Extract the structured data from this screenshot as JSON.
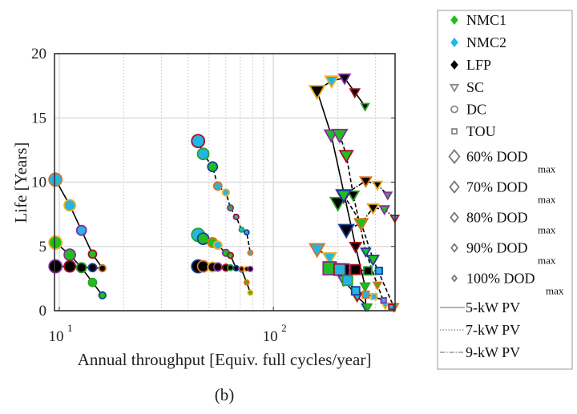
{
  "chart_data": {
    "type": "scatter",
    "panel_label": "(b)",
    "xlabel": "Annual throughput [Equiv. full cycles/year]",
    "ylabel": "Life [Years]",
    "x_scale": "log",
    "xlim": [
      9.5,
      370
    ],
    "ylim": [
      0,
      20
    ],
    "x_ticks": [
      {
        "value": 10,
        "base": "10",
        "exp": "1"
      },
      {
        "value": 100,
        "base": "10",
        "exp": "2"
      }
    ],
    "y_ticks": [
      "0",
      "5",
      "10",
      "15",
      "20"
    ],
    "grid": true,
    "legend_position": "outside-right",
    "legend": {
      "batteries": [
        {
          "label": "NMC1",
          "color": "#1fbf1f"
        },
        {
          "label": "NMC2",
          "color": "#22b6e6"
        },
        {
          "label": "LFP",
          "color": "#000000"
        }
      ],
      "tariffs": [
        {
          "label": "SC",
          "marker": "triangle-down"
        },
        {
          "label": "DC",
          "marker": "circle"
        },
        {
          "label": "TOU",
          "marker": "square"
        }
      ],
      "dod": [
        {
          "label": "60% DOD",
          "sub": "max"
        },
        {
          "label": "70% DOD",
          "sub": "max"
        },
        {
          "label": "80% DOD",
          "sub": "max"
        },
        {
          "label": "90% DOD",
          "sub": "max"
        },
        {
          "label": "100% DOD",
          "sub": "max"
        }
      ],
      "pv": [
        {
          "label": "5-kW PV",
          "linestyle": "solid"
        },
        {
          "label": "7-kW PV",
          "linestyle": "dotted"
        },
        {
          "label": "9-kW PV",
          "linestyle": "dashdot"
        }
      ]
    },
    "edge_palette": [
      "#e0701a",
      "#f0b020",
      "#8a2ca0",
      "#a01020",
      "#2aa02a",
      "#1a3f9a"
    ],
    "series": [
      {
        "marker": "circle",
        "linestyle": "solid",
        "points": [
          [
            9.6,
            10.2
          ],
          [
            11.2,
            8.2
          ],
          [
            12.7,
            6.25
          ],
          [
            14.3,
            4.4
          ],
          [
            15.9,
            3.3
          ]
        ],
        "faces": [
          "#22b6e6",
          "#22b6e6",
          "#22b6e6",
          "#1fbf1f",
          "#000000"
        ]
      },
      {
        "marker": "circle",
        "linestyle": "solid",
        "points": [
          [
            9.6,
            5.3
          ],
          [
            11.2,
            4.35
          ],
          [
            12.7,
            3.35
          ],
          [
            14.3,
            2.2
          ],
          [
            15.9,
            1.2
          ]
        ],
        "faces": [
          "#1fbf1f",
          "#1fbf1f",
          "#000000",
          "#1fbf1f",
          "#1fbf1f"
        ]
      },
      {
        "marker": "circle",
        "linestyle": "solid",
        "points": [
          [
            9.6,
            3.45
          ],
          [
            11.2,
            3.45
          ],
          [
            12.7,
            3.35
          ],
          [
            14.3,
            3.35
          ],
          [
            15.9,
            3.3
          ]
        ],
        "faces": [
          "#000000",
          "#000000",
          "#000000",
          "#000000",
          "#000000"
        ]
      },
      {
        "marker": "circle",
        "linestyle": "dashed",
        "points": [
          [
            44.5,
            13.2
          ],
          [
            47,
            12.2
          ],
          [
            52,
            11.2
          ],
          [
            55,
            9.7
          ],
          [
            60,
            9.2
          ],
          [
            63,
            8.0
          ],
          [
            67,
            7.3
          ],
          [
            71,
            6.3
          ],
          [
            75,
            6.1
          ],
          [
            78,
            4.5
          ]
        ],
        "faces": [
          "#22b6e6",
          "#22b6e6",
          "#1fbf1f",
          "#22b6e6",
          "#22b6e6",
          "#1fbf1f",
          "#22b6e6",
          "#22b6e6",
          "#22b6e6",
          "#22b6e6"
        ]
      },
      {
        "marker": "circle",
        "linestyle": "solid",
        "points": [
          [
            44.5,
            5.9
          ],
          [
            47,
            5.6
          ],
          [
            52,
            5.3
          ],
          [
            55,
            5.1
          ],
          [
            60,
            4.5
          ],
          [
            63,
            4.3
          ],
          [
            67,
            3.3
          ],
          [
            71,
            3.2
          ],
          [
            75,
            2.2
          ],
          [
            78,
            1.4
          ]
        ],
        "faces": [
          "#22b6e6",
          "#1fbf1f",
          "#1fbf1f",
          "#22b6e6",
          "#1fbf1f",
          "#1fbf1f",
          "#000000",
          "#000000",
          "#1fbf1f",
          "#1fbf1f"
        ]
      },
      {
        "marker": "circle",
        "linestyle": "dashed",
        "points": [
          [
            44.5,
            3.45
          ],
          [
            47,
            3.45
          ],
          [
            52,
            3.4
          ],
          [
            55,
            3.4
          ],
          [
            60,
            3.35
          ],
          [
            63,
            3.35
          ],
          [
            67,
            3.3
          ],
          [
            71,
            3.25
          ],
          [
            75,
            3.25
          ],
          [
            78,
            3.25
          ]
        ],
        "faces": [
          "#000000",
          "#000000",
          "#000000",
          "#000000",
          "#000000",
          "#000000",
          "#000000",
          "#000000",
          "#000000",
          "#000000"
        ]
      },
      {
        "marker": "triangle-down",
        "linestyle": "solid",
        "points": [
          [
            160,
            17.1
          ],
          [
            187,
            17.9
          ],
          [
            215,
            18.1
          ],
          [
            240,
            17.0
          ],
          [
            268,
            15.9
          ]
        ],
        "faces": [
          "#000000",
          "#22b6e6",
          "#000000",
          "#000000",
          "#000000"
        ]
      },
      {
        "marker": "triangle-down",
        "linestyle": "solid",
        "points": [
          [
            160,
            17.1
          ],
          [
            186,
            13.7
          ],
          [
            242,
            5.0
          ],
          [
            268,
            1.9
          ],
          [
            270,
            0.3
          ]
        ],
        "faces": [
          "#000000",
          "#1fbf1f",
          "#000000",
          "#1fbf1f",
          "#1fbf1f"
        ]
      },
      {
        "marker": "triangle-down",
        "linestyle": "dashed",
        "points": [
          [
            204,
            13.7
          ],
          [
            219,
            12.1
          ],
          [
            236,
            9.0
          ],
          [
            270,
            4.6
          ],
          [
            306,
            2.0
          ],
          [
            333,
            0.4
          ]
        ],
        "faces": [
          "#1fbf1f",
          "#1fbf1f",
          "#000000",
          "#1fbf1f",
          "#1fbf1f",
          "#22b6e6"
        ]
      },
      {
        "marker": "triangle-down",
        "linestyle": "dashed",
        "points": [
          [
            213,
            9.0
          ],
          [
            257,
            6.8
          ],
          [
            292,
            4.0
          ],
          [
            365,
            0.3
          ]
        ],
        "faces": [
          "#1fbf1f",
          "#1fbf1f",
          "#1fbf1f",
          "#22b6e6"
        ]
      },
      {
        "marker": "triangle-down",
        "linestyle": "dashdot",
        "points": [
          [
            200,
            8.4
          ],
          [
            213,
            9.0
          ],
          [
            270,
            10.1
          ],
          [
            306,
            9.8
          ],
          [
            342,
            9.0
          ]
        ],
        "faces": [
          "#000000",
          "#1fbf1f",
          "#000000",
          "#000000",
          "#1fbf1f"
        ]
      },
      {
        "marker": "triangle-down",
        "linestyle": "dashdot",
        "points": [
          [
            219,
            6.3
          ],
          [
            257,
            6.8
          ],
          [
            292,
            8.0
          ],
          [
            330,
            7.9
          ],
          [
            369,
            7.2
          ]
        ],
        "faces": [
          "#000000",
          "#1fbf1f",
          "#000000",
          "#1fbf1f",
          "#22b6e6"
        ]
      },
      {
        "marker": "triangle-down",
        "linestyle": "solid",
        "points": [
          [
            160,
            4.8
          ],
          [
            183,
            4.15
          ],
          [
            213,
            2.4
          ],
          [
            246,
            1.1
          ],
          [
            276,
            0.3
          ]
        ],
        "faces": [
          "#22b6e6",
          "#22b6e6",
          "#22b6e6",
          "#22b6e6",
          "#1fbf1f"
        ]
      },
      {
        "marker": "square",
        "linestyle": "dashed",
        "points": [
          [
            183,
            3.3
          ],
          [
            213,
            3.2
          ],
          [
            242,
            3.2
          ],
          [
            276,
            3.1
          ],
          [
            311,
            3.1
          ]
        ],
        "faces": [
          "#000000",
          "#000000",
          "#000000",
          "#000000",
          "#22b6e6"
        ]
      },
      {
        "marker": "square",
        "linestyle": "solid",
        "points": [
          [
            183,
            3.3
          ],
          [
            204,
            3.2
          ],
          [
            222,
            2.35
          ],
          [
            242,
            1.55
          ],
          [
            270,
            1.25
          ],
          [
            295,
            1.1
          ],
          [
            327,
            0.8
          ],
          [
            355,
            0.3
          ]
        ],
        "faces": [
          "#1fbf1f",
          "#22b6e6",
          "#22b6e6",
          "#22b6e6",
          "#22b6e6",
          "#22b6e6",
          "#22b6e6",
          "#22b6e6"
        ]
      }
    ]
  }
}
